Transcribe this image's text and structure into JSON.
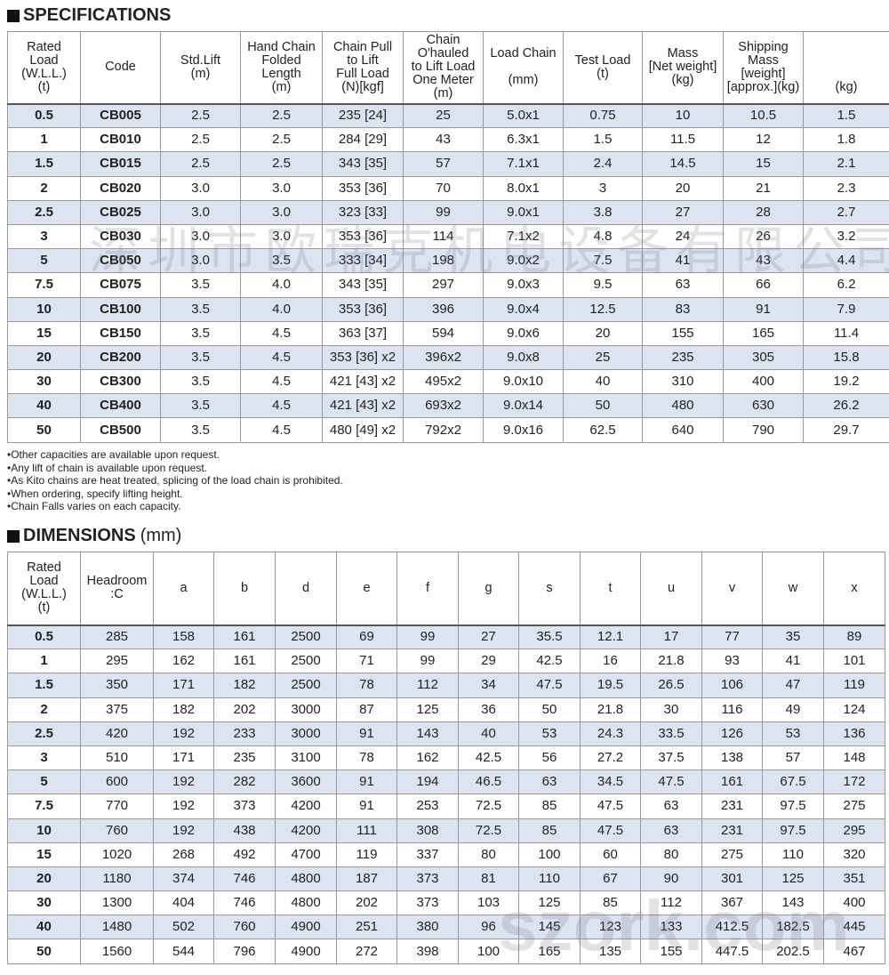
{
  "specifications": {
    "title": "SPECIFICATIONS",
    "headers": [
      "Rated\nLoad\n(W.L.L.)\n(t)",
      "Code",
      "Std.Lift\n(m)",
      "Hand Chain\nFolded\nLength\n(m)",
      "Chain Pull\nto Lift\nFull Load\n(N)[kgf]",
      "Chain\nO'hauled\nto Lift Load\nOne Meter\n(m)",
      "Load Chain\n\n(mm)",
      "Test Load\n(t)",
      "Mass\n[Net weight]\n(kg)",
      "Shipping\nMass\n[weight]\n[approx.](kg)",
      "\n\n\n(kg)"
    ],
    "rows": [
      [
        "0.5",
        "CB005",
        "2.5",
        "2.5",
        "235 [24]",
        "25",
        "5.0x1",
        "0.75",
        "10",
        "10.5",
        "1.5"
      ],
      [
        "1",
        "CB010",
        "2.5",
        "2.5",
        "284 [29]",
        "43",
        "6.3x1",
        "1.5",
        "11.5",
        "12",
        "1.8"
      ],
      [
        "1.5",
        "CB015",
        "2.5",
        "2.5",
        "343 [35]",
        "57",
        "7.1x1",
        "2.4",
        "14.5",
        "15",
        "2.1"
      ],
      [
        "2",
        "CB020",
        "3.0",
        "3.0",
        "353 [36]",
        "70",
        "8.0x1",
        "3",
        "20",
        "21",
        "2.3"
      ],
      [
        "2.5",
        "CB025",
        "3.0",
        "3.0",
        "323 [33]",
        "99",
        "9.0x1",
        "3.8",
        "27",
        "28",
        "2.7"
      ],
      [
        "3",
        "CB030",
        "3.0",
        "3.0",
        "353 [36]",
        "114",
        "7.1x2",
        "4.8",
        "24",
        "26",
        "3.2"
      ],
      [
        "5",
        "CB050",
        "3.0",
        "3.5",
        "333 [34]",
        "198",
        "9.0x2",
        "7.5",
        "41",
        "43",
        "4.4"
      ],
      [
        "7.5",
        "CB075",
        "3.5",
        "4.0",
        "343 [35]",
        "297",
        "9.0x3",
        "9.5",
        "63",
        "66",
        "6.2"
      ],
      [
        "10",
        "CB100",
        "3.5",
        "4.0",
        "353 [36]",
        "396",
        "9.0x4",
        "12.5",
        "83",
        "91",
        "7.9"
      ],
      [
        "15",
        "CB150",
        "3.5",
        "4.5",
        "363 [37]",
        "594",
        "9.0x6",
        "20",
        "155",
        "165",
        "11.4"
      ],
      [
        "20",
        "CB200",
        "3.5",
        "4.5",
        "353 [36] x2",
        "396x2",
        "9.0x8",
        "25",
        "235",
        "305",
        "15.8"
      ],
      [
        "30",
        "CB300",
        "3.5",
        "4.5",
        "421 [43] x2",
        "495x2",
        "9.0x10",
        "40",
        "310",
        "400",
        "19.2"
      ],
      [
        "40",
        "CB400",
        "3.5",
        "4.5",
        "421 [43] x2",
        "693x2",
        "9.0x14",
        "50",
        "480",
        "630",
        "26.2"
      ],
      [
        "50",
        "CB500",
        "3.5",
        "4.5",
        "480 [49] x2",
        "792x2",
        "9.0x16",
        "62.5",
        "640",
        "790",
        "29.7"
      ]
    ]
  },
  "notes": [
    "•Other capacities are available upon request.",
    "•Any lift of chain is available upon request.",
    "•As Kito chains are heat treated, splicing of the load chain is prohibited.",
    "•When ordering, specify lifting height.",
    "•Chain Falls varies on each capacity."
  ],
  "dimensions": {
    "title": "DIMENSIONS",
    "unit": "(mm)",
    "headers": [
      "Rated\nLoad\n(W.L.L.)\n(t)",
      "Headroom\n:C",
      "a",
      "b",
      "d",
      "e",
      "f",
      "g",
      "s",
      "t",
      "u",
      "v",
      "w",
      "x"
    ],
    "rows": [
      [
        "0.5",
        "285",
        "158",
        "161",
        "2500",
        "69",
        "99",
        "27",
        "35.5",
        "12.1",
        "17",
        "77",
        "35",
        "89"
      ],
      [
        "1",
        "295",
        "162",
        "161",
        "2500",
        "71",
        "99",
        "29",
        "42.5",
        "16",
        "21.8",
        "93",
        "41",
        "101"
      ],
      [
        "1.5",
        "350",
        "171",
        "182",
        "2500",
        "78",
        "112",
        "34",
        "47.5",
        "19.5",
        "26.5",
        "106",
        "47",
        "119"
      ],
      [
        "2",
        "375",
        "182",
        "202",
        "3000",
        "87",
        "125",
        "36",
        "50",
        "21.8",
        "30",
        "116",
        "49",
        "124"
      ],
      [
        "2.5",
        "420",
        "192",
        "233",
        "3000",
        "91",
        "143",
        "40",
        "53",
        "24.3",
        "33.5",
        "126",
        "53",
        "136"
      ],
      [
        "3",
        "510",
        "171",
        "235",
        "3100",
        "78",
        "162",
        "42.5",
        "56",
        "27.2",
        "37.5",
        "138",
        "57",
        "148"
      ],
      [
        "5",
        "600",
        "192",
        "282",
        "3600",
        "91",
        "194",
        "46.5",
        "63",
        "34.5",
        "47.5",
        "161",
        "67.5",
        "172"
      ],
      [
        "7.5",
        "770",
        "192",
        "373",
        "4200",
        "91",
        "253",
        "72.5",
        "85",
        "47.5",
        "63",
        "231",
        "97.5",
        "275"
      ],
      [
        "10",
        "760",
        "192",
        "438",
        "4200",
        "111",
        "308",
        "72.5",
        "85",
        "47.5",
        "63",
        "231",
        "97.5",
        "295"
      ],
      [
        "15",
        "1020",
        "268",
        "492",
        "4700",
        "119",
        "337",
        "80",
        "100",
        "60",
        "80",
        "275",
        "110",
        "320"
      ],
      [
        "20",
        "1180",
        "374",
        "746",
        "4800",
        "187",
        "373",
        "81",
        "110",
        "67",
        "90",
        "301",
        "125",
        "351"
      ],
      [
        "30",
        "1300",
        "404",
        "746",
        "4800",
        "202",
        "373",
        "103",
        "125",
        "85",
        "112",
        "367",
        "143",
        "400"
      ],
      [
        "40",
        "1480",
        "502",
        "760",
        "4900",
        "251",
        "380",
        "96",
        "145",
        "123",
        "133",
        "412.5",
        "182.5",
        "445"
      ],
      [
        "50",
        "1560",
        "544",
        "796",
        "4900",
        "272",
        "398",
        "100",
        "165",
        "135",
        "155",
        "447.5",
        "202.5",
        "467"
      ]
    ]
  },
  "watermarks": [
    "深圳市欧瑞克机电设备有限公司",
    "szork.com"
  ]
}
